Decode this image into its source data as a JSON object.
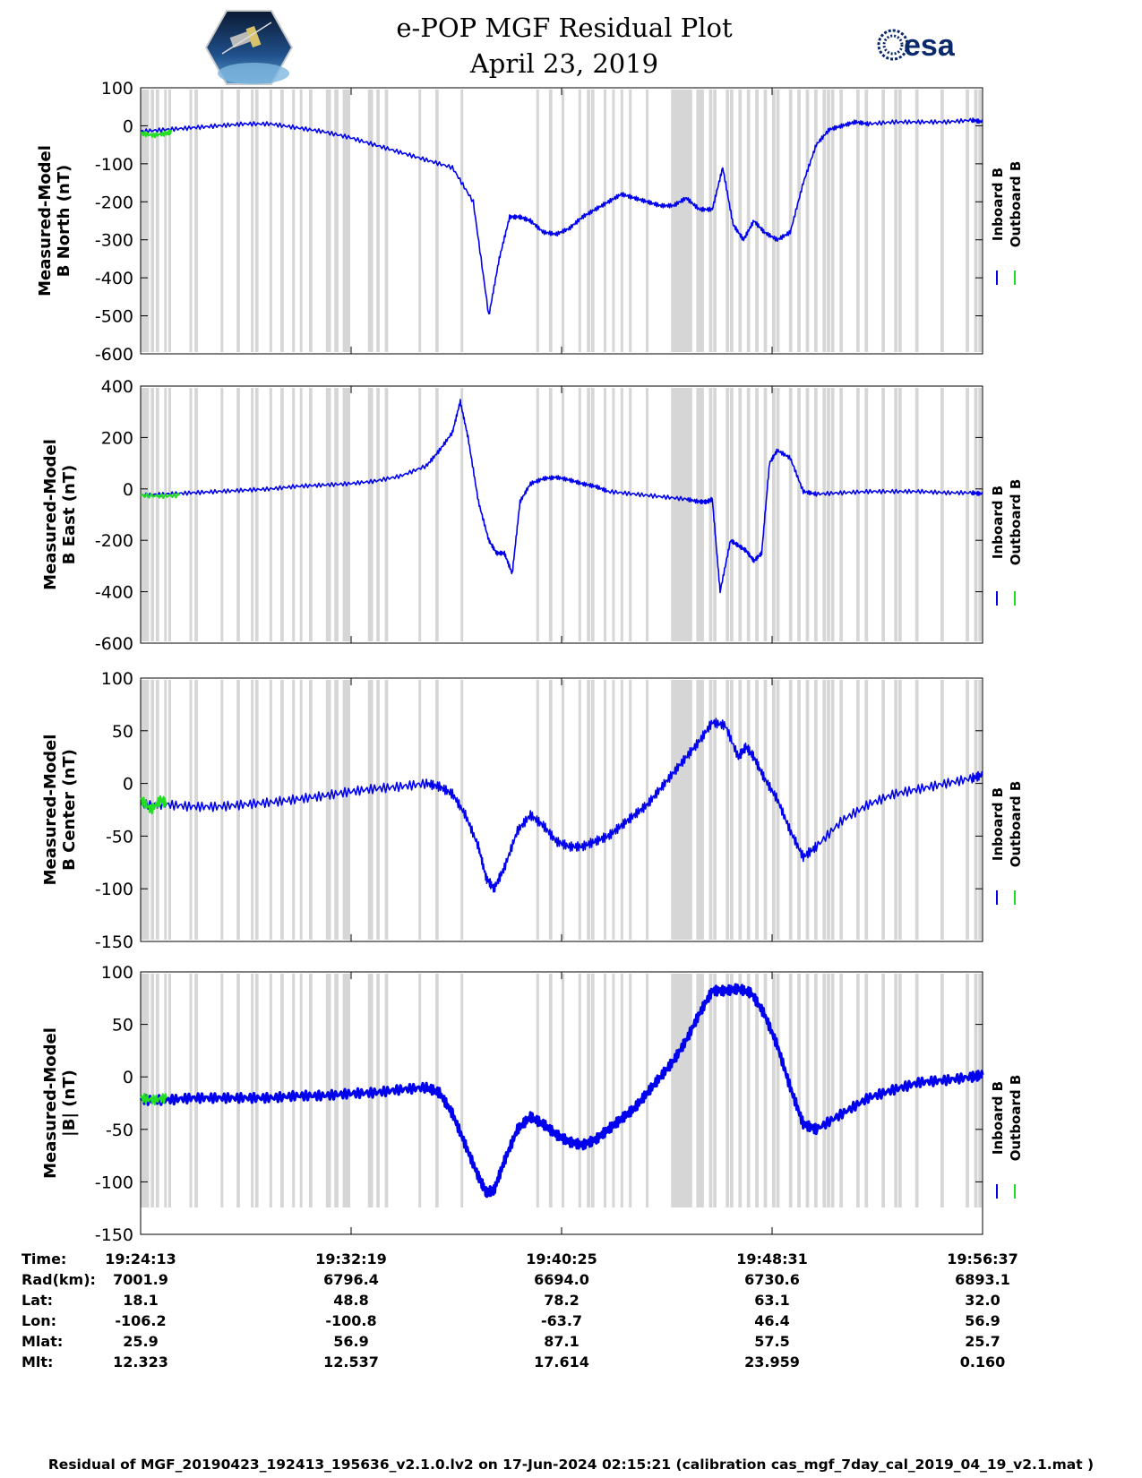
{
  "title": "e-POP MGF Residual Plot",
  "date": "April 23, 2019",
  "logos": {
    "left": "cassiope-mission-logo",
    "right_text": "esa"
  },
  "colors": {
    "inboard": "#0000ee",
    "outboard": "#22dd22",
    "gap_shading": "#d6d6d6"
  },
  "chart_data": [
    {
      "type": "line",
      "ylabel_line1": "Measured-Model",
      "ylabel_line2": "B North (nT)",
      "ylim": [
        -600,
        100
      ],
      "yticks": [
        100,
        0,
        -100,
        -200,
        -300,
        -400,
        -500,
        -600
      ],
      "xlim_minutes": [
        0,
        32.4
      ],
      "legend": [
        "Inboard B",
        "Outboard B"
      ],
      "series": [
        {
          "name": "Inboard B",
          "x": [
            0,
            1,
            2,
            3,
            4,
            5,
            6,
            7,
            8,
            9,
            10,
            11,
            12,
            12.8,
            13.4,
            13.8,
            14.2,
            14.6,
            15,
            15.5,
            16,
            16.5,
            17,
            17.5,
            18,
            18.5,
            19,
            19.5,
            20,
            20.5,
            21,
            21.5,
            22,
            22.4,
            22.8,
            23.2,
            23.6,
            24,
            24.5,
            25,
            25.5,
            26,
            26.5,
            27,
            27.5,
            28,
            29,
            30,
            31,
            32,
            32.4
          ],
          "y": [
            -15,
            -10,
            -5,
            0,
            5,
            5,
            -5,
            -15,
            -30,
            -50,
            -70,
            -90,
            -110,
            -200,
            -500,
            -350,
            -240,
            -240,
            -250,
            -280,
            -285,
            -270,
            -240,
            -220,
            -200,
            -180,
            -190,
            -200,
            -210,
            -210,
            -190,
            -220,
            -220,
            -110,
            -260,
            -300,
            -250,
            -280,
            -300,
            -280,
            -150,
            -50,
            -10,
            0,
            10,
            5,
            10,
            10,
            10,
            15,
            10
          ]
        },
        {
          "name": "Outboard B",
          "x": [
            0,
            0.5,
            1,
            1.2
          ],
          "y": [
            -20,
            -25,
            -20,
            -15
          ]
        }
      ]
    },
    {
      "type": "line",
      "ylabel_line1": "Measured-Model",
      "ylabel_line2": "B East (nT)",
      "ylim": [
        -600,
        400
      ],
      "yticks": [
        400,
        200,
        0,
        -200,
        -400,
        -600
      ],
      "xlim_minutes": [
        0,
        32.4
      ],
      "legend": [
        "Inboard B",
        "Outboard B"
      ],
      "series": [
        {
          "name": "Inboard B",
          "x": [
            0,
            1,
            2,
            3,
            4,
            5,
            6,
            7,
            8,
            9,
            10,
            11,
            11.5,
            12,
            12.3,
            12.6,
            13,
            13.4,
            13.7,
            14,
            14.3,
            14.6,
            15,
            15.5,
            16,
            16.5,
            17,
            17.5,
            18,
            19,
            20,
            21,
            21.5,
            21.8,
            22,
            22.3,
            22.7,
            23,
            23.3,
            23.6,
            23.9,
            24.2,
            24.5,
            25,
            25.5,
            26,
            27,
            28,
            29,
            30,
            31,
            32,
            32.4
          ],
          "y": [
            -25,
            -20,
            -15,
            -10,
            -5,
            0,
            10,
            15,
            20,
            30,
            50,
            90,
            150,
            220,
            340,
            200,
            -50,
            -200,
            -250,
            -250,
            -330,
            -50,
            20,
            40,
            45,
            35,
            20,
            10,
            -10,
            -20,
            -30,
            -40,
            -50,
            -50,
            -40,
            -400,
            -200,
            -220,
            -240,
            -280,
            -250,
            100,
            150,
            120,
            -10,
            -20,
            -15,
            -10,
            -10,
            -10,
            -15,
            -15,
            -20
          ]
        },
        {
          "name": "Outboard B",
          "x": [
            0,
            0.8,
            1.5
          ],
          "y": [
            -25,
            -28,
            -25
          ]
        }
      ]
    },
    {
      "type": "line",
      "ylabel_line1": "Measured-Model",
      "ylabel_line2": "B Center (nT)",
      "ylim": [
        -150,
        100
      ],
      "yticks": [
        100,
        50,
        0,
        -50,
        -100,
        -150
      ],
      "xlim_minutes": [
        0,
        32.4
      ],
      "legend": [
        "Inboard B",
        "Outboard B"
      ],
      "series": [
        {
          "name": "Inboard B",
          "x": [
            0,
            1,
            2,
            3,
            4,
            5,
            6,
            7,
            8,
            9,
            10,
            11,
            11.5,
            12,
            12.5,
            13,
            13.3,
            13.6,
            14,
            14.5,
            15,
            15.5,
            16,
            16.5,
            17,
            17.5,
            18,
            18.5,
            19,
            19.5,
            20,
            20.5,
            21,
            21.5,
            22,
            22.5,
            23,
            23.3,
            23.6,
            24,
            24.5,
            25,
            25.5,
            26,
            27,
            28,
            29,
            30,
            31,
            32,
            32.4
          ],
          "y": [
            -20,
            -20,
            -22,
            -22,
            -20,
            -18,
            -15,
            -12,
            -8,
            -5,
            -3,
            0,
            -3,
            -10,
            -30,
            -60,
            -90,
            -100,
            -80,
            -45,
            -30,
            -40,
            -55,
            -60,
            -60,
            -55,
            -50,
            -40,
            -30,
            -20,
            -5,
            10,
            25,
            40,
            58,
            55,
            25,
            35,
            25,
            5,
            -15,
            -45,
            -70,
            -60,
            -35,
            -20,
            -10,
            -5,
            0,
            5,
            8
          ]
        },
        {
          "name": "Outboard B",
          "x": [
            0,
            0.4,
            0.8,
            1.0
          ],
          "y": [
            -15,
            -25,
            -15,
            -20
          ]
        }
      ]
    },
    {
      "type": "line",
      "ylabel_line1": "Measured-Model",
      "ylabel_line2": "|B| (nT)",
      "ylim": [
        -150,
        100
      ],
      "yticks": [
        100,
        50,
        0,
        -50,
        -100,
        -150
      ],
      "xlim_minutes": [
        0,
        32.4
      ],
      "legend": [
        "Inboard B",
        "Outboard B"
      ],
      "series": [
        {
          "name": "Inboard B",
          "x": [
            0,
            1,
            2,
            3,
            4,
            5,
            6,
            7,
            8,
            9,
            10,
            11,
            11.5,
            12,
            12.5,
            13,
            13.3,
            13.6,
            14,
            14.5,
            15,
            15.5,
            16,
            16.5,
            17,
            17.5,
            18,
            18.5,
            19,
            19.5,
            20,
            20.5,
            21,
            21.5,
            22,
            22.5,
            23,
            23.5,
            24,
            24.5,
            25,
            25.5,
            26,
            27,
            28,
            29,
            30,
            31,
            32,
            32.4
          ],
          "y": [
            -22,
            -22,
            -20,
            -20,
            -20,
            -20,
            -18,
            -18,
            -16,
            -15,
            -12,
            -10,
            -15,
            -35,
            -65,
            -95,
            -110,
            -108,
            -80,
            -50,
            -38,
            -45,
            -55,
            -62,
            -65,
            -60,
            -50,
            -40,
            -30,
            -15,
            0,
            15,
            35,
            60,
            82,
            82,
            84,
            80,
            60,
            30,
            -10,
            -45,
            -50,
            -35,
            -20,
            -12,
            -5,
            -3,
            0,
            2
          ]
        },
        {
          "name": "Outboard B",
          "x": [
            0,
            0.5,
            1.0
          ],
          "y": [
            -20,
            -22,
            -20
          ]
        }
      ]
    }
  ],
  "axis_info": {
    "labels": [
      "Time:",
      "Rad(km):",
      "Lat:",
      "Lon:",
      "Mlat:",
      "Mlt:"
    ],
    "columns": [
      [
        "19:24:13",
        "7001.9",
        "18.1",
        "-106.2",
        "25.9",
        "12.323"
      ],
      [
        "19:32:19",
        "6796.4",
        "48.8",
        "-100.8",
        "56.9",
        "12.537"
      ],
      [
        "19:40:25",
        "6694.0",
        "78.2",
        "-63.7",
        "87.1",
        "17.614"
      ],
      [
        "19:48:31",
        "6730.6",
        "63.1",
        "46.4",
        "57.5",
        "23.959"
      ],
      [
        "19:56:37",
        "6893.1",
        "32.0",
        "56.9",
        "25.7",
        "0.160"
      ]
    ]
  },
  "footer": "Residual of MGF_20190423_192413_195636_v2.1.0.lv2 on 17-Jun-2024 02:15:21 (calibration cas_mgf_7day_cal_2019_04_19_v2.1.mat )"
}
